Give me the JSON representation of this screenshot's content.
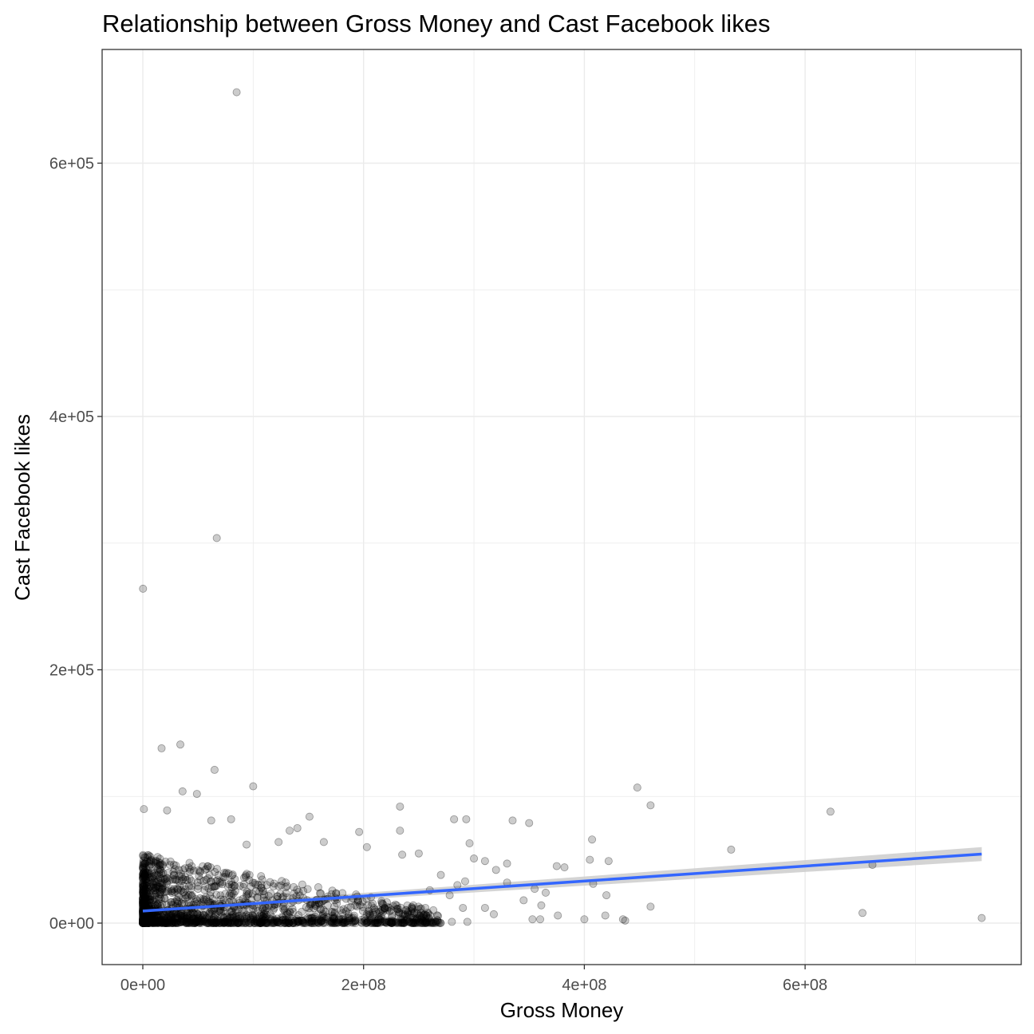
{
  "chart_data": {
    "type": "scatter",
    "title": "Relationship between Gross Money and Cast Facebook likes",
    "xlabel": "Gross Money",
    "ylabel": "Cast Facebook likes",
    "xlim": [
      -37000000,
      797000000
    ],
    "ylim": [
      -33000000,
      685000
    ],
    "ylim_note": "",
    "x_ticks": [
      {
        "value": 0,
        "label": "0e+00"
      },
      {
        "value": 200000000,
        "label": "2e+08"
      },
      {
        "value": 400000000,
        "label": "4e+08"
      },
      {
        "value": 600000000,
        "label": "6e+08"
      }
    ],
    "y_ticks": [
      {
        "value": 0,
        "label": "0e+00"
      },
      {
        "value": 200000,
        "label": "2e+05"
      },
      {
        "value": 400000,
        "label": "4e+05"
      },
      {
        "value": 600000,
        "label": "6e+05"
      }
    ],
    "grid": true,
    "point_color": "#000000",
    "point_alpha": 0.2,
    "points": [
      [
        85000000,
        656000
      ],
      [
        67000000,
        304000
      ],
      [
        200000,
        264000
      ],
      [
        34000000,
        141000
      ],
      [
        17000000,
        138000
      ],
      [
        65000000,
        121000
      ],
      [
        100000000,
        108000
      ],
      [
        36000000,
        104000
      ],
      [
        49000000,
        102000
      ],
      [
        448000000,
        107000
      ],
      [
        460000000,
        93000
      ],
      [
        623000000,
        88000
      ],
      [
        1000000,
        90000
      ],
      [
        22000000,
        89000
      ],
      [
        62000000,
        81000
      ],
      [
        80000000,
        82000
      ],
      [
        151000000,
        84000
      ],
      [
        233000000,
        92000
      ],
      [
        282000000,
        82000
      ],
      [
        293000000,
        82000
      ],
      [
        335000000,
        81000
      ],
      [
        350000000,
        79000
      ],
      [
        140000000,
        75000
      ],
      [
        133000000,
        73000
      ],
      [
        233000000,
        73000
      ],
      [
        196000000,
        72000
      ],
      [
        94000000,
        62000
      ],
      [
        123000000,
        64000
      ],
      [
        164000000,
        64000
      ],
      [
        203000000,
        60000
      ],
      [
        296000000,
        63000
      ],
      [
        407000000,
        66000
      ],
      [
        533000000,
        58000
      ],
      [
        250000000,
        55000
      ],
      [
        235000000,
        54000
      ],
      [
        300000000,
        51000
      ],
      [
        310000000,
        49000
      ],
      [
        330000000,
        47000
      ],
      [
        375000000,
        45000
      ],
      [
        382000000,
        44000
      ],
      [
        422000000,
        49000
      ],
      [
        405000000,
        50000
      ],
      [
        661000000,
        46000
      ],
      [
        270000000,
        38000
      ],
      [
        320000000,
        42000
      ],
      [
        285000000,
        30000
      ],
      [
        292000000,
        33000
      ],
      [
        330000000,
        32000
      ],
      [
        355000000,
        27000
      ],
      [
        365000000,
        24000
      ],
      [
        408000000,
        31000
      ],
      [
        420000000,
        22000
      ],
      [
        345000000,
        18000
      ],
      [
        361000000,
        14000
      ],
      [
        290000000,
        12000
      ],
      [
        318000000,
        7000
      ],
      [
        310000000,
        12000
      ],
      [
        353000000,
        3000
      ],
      [
        360000000,
        3000
      ],
      [
        376000000,
        6000
      ],
      [
        400000000,
        3000
      ],
      [
        419000000,
        6000
      ],
      [
        435000000,
        3000
      ],
      [
        437000000,
        2000
      ],
      [
        460000000,
        13000
      ],
      [
        652000000,
        8000
      ],
      [
        760000000,
        4000
      ],
      [
        280000000,
        1000
      ],
      [
        294000000,
        1000
      ],
      [
        265000000,
        1000
      ],
      [
        256000000,
        12000
      ],
      [
        278000000,
        22000
      ],
      [
        260000000,
        26000
      ],
      [
        245000000,
        14000
      ],
      [
        240000000,
        8000
      ]
    ],
    "dense_cluster": {
      "note": "",
      "x_range": [
        0,
        300000000
      ],
      "y_range": [
        0,
        60000
      ]
    },
    "trend": {
      "type": "linear",
      "color": "#3366ff",
      "band_color": "#cccccc",
      "points": [
        [
          0,
          9500
        ],
        [
          760000000,
          54500
        ]
      ],
      "band_halfwidth_start": 1500,
      "band_halfwidth_end": 5500
    }
  }
}
